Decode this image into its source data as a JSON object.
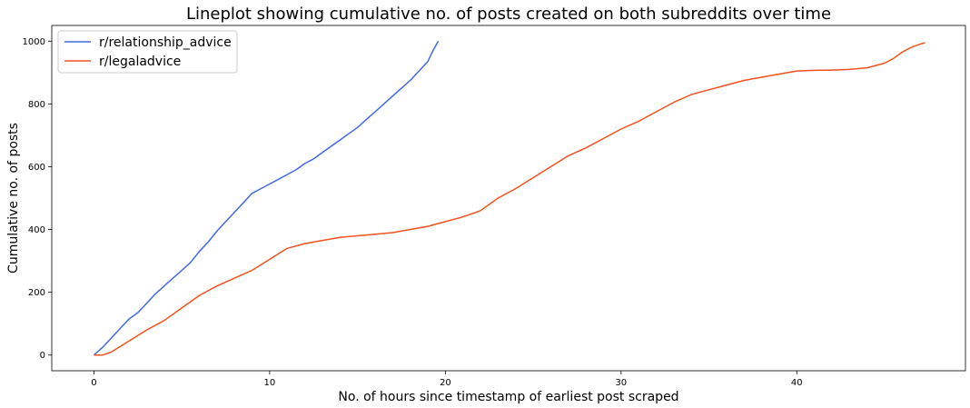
{
  "chart_data": {
    "type": "line",
    "title": "Lineplot showing cumulative no. of posts created on both subreddits over time",
    "xlabel": "No. of hours since timestamp of earliest post scraped",
    "ylabel": "Cumulative no. of posts",
    "xlim": [
      -2.4,
      49.6
    ],
    "ylim": [
      -50,
      1050
    ],
    "xticks": [
      0,
      10,
      20,
      30,
      40
    ],
    "yticks": [
      0,
      200,
      400,
      600,
      800,
      1000
    ],
    "grid": false,
    "legend_position": "top-left",
    "series": [
      {
        "name": "r/relationship_advice",
        "color": "#4169E1",
        "x": [
          0,
          0.5,
          1.0,
          1.5,
          2.0,
          2.5,
          3.0,
          3.5,
          4.0,
          4.5,
          5.0,
          5.5,
          6.0,
          6.5,
          7.0,
          7.5,
          8.0,
          8.5,
          9.0,
          9.5,
          10.0,
          10.5,
          11.0,
          11.5,
          12.0,
          12.5,
          13.0,
          13.5,
          14.0,
          14.5,
          15.0,
          15.5,
          16.0,
          16.5,
          17.0,
          17.5,
          18.0,
          18.5,
          19.0,
          19.3,
          19.6
        ],
        "y": [
          0,
          25,
          55,
          85,
          115,
          135,
          165,
          195,
          220,
          245,
          270,
          295,
          330,
          360,
          395,
          425,
          455,
          485,
          515,
          530,
          545,
          560,
          575,
          590,
          610,
          625,
          645,
          665,
          685,
          705,
          725,
          750,
          775,
          800,
          825,
          850,
          875,
          905,
          935,
          970,
          1000
        ]
      },
      {
        "name": "r/legaladvice",
        "color": "#F4511E",
        "x": [
          0,
          0.5,
          1.0,
          2.0,
          3.0,
          4.0,
          5.0,
          6.0,
          7.0,
          8.0,
          9.0,
          10.0,
          11.0,
          12.0,
          13.0,
          14.0,
          15.0,
          16.0,
          17.0,
          18.0,
          19.0,
          20.0,
          21.0,
          22.0,
          23.0,
          24.0,
          25.0,
          26.0,
          27.0,
          28.0,
          29.0,
          30.0,
          31.0,
          32.0,
          33.0,
          34.0,
          35.0,
          36.0,
          37.0,
          38.0,
          39.0,
          40.0,
          41.0,
          42.0,
          43.0,
          44.0,
          45.0,
          45.5,
          46.0,
          46.5,
          47.0,
          47.3
        ],
        "y": [
          0,
          0,
          10,
          45,
          80,
          110,
          150,
          190,
          220,
          245,
          270,
          305,
          340,
          355,
          365,
          375,
          380,
          385,
          390,
          400,
          410,
          425,
          440,
          460,
          500,
          530,
          565,
          600,
          635,
          660,
          690,
          720,
          745,
          775,
          805,
          830,
          845,
          860,
          875,
          885,
          895,
          905,
          907,
          908,
          910,
          915,
          930,
          945,
          965,
          980,
          990,
          995
        ]
      }
    ]
  }
}
